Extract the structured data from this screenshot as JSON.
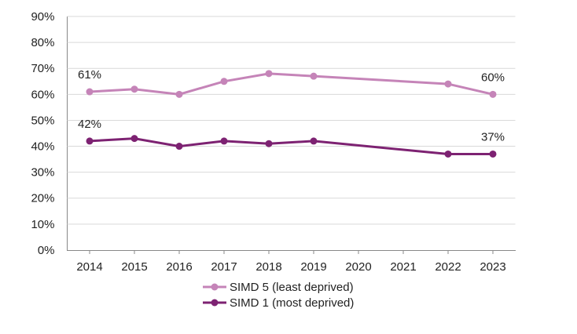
{
  "chart_data": {
    "type": "line",
    "x": [
      2014,
      2015,
      2016,
      2017,
      2018,
      2019,
      2022,
      2023
    ],
    "xlim": [
      2013.5,
      2023.5
    ],
    "xticks": [
      2014,
      2015,
      2016,
      2017,
      2018,
      2019,
      2020,
      2021,
      2022,
      2023
    ],
    "ylim": [
      0,
      90
    ],
    "yticks": [
      {
        "value": 0,
        "label": "0%"
      },
      {
        "value": 10,
        "label": "10%"
      },
      {
        "value": 20,
        "label": "20%"
      },
      {
        "value": 30,
        "label": "30%"
      },
      {
        "value": 40,
        "label": "40%"
      },
      {
        "value": 50,
        "label": "50%"
      },
      {
        "value": 60,
        "label": "60%"
      },
      {
        "value": 70,
        "label": "70%"
      },
      {
        "value": 80,
        "label": "80%"
      },
      {
        "value": 90,
        "label": "90%"
      }
    ],
    "grid": true,
    "legend": "bottom",
    "series": [
      {
        "name": "SIMD 5 (least deprived)",
        "color": "#c584b8",
        "values": [
          61,
          62,
          60,
          65,
          68,
          67,
          64,
          60
        ],
        "value_labels": [
          "61%",
          null,
          null,
          null,
          null,
          null,
          null,
          "60%"
        ]
      },
      {
        "name": "SIMD 1 (most deprived)",
        "color": "#7d2272",
        "values": [
          42,
          43,
          40,
          42,
          41,
          42,
          37,
          37
        ],
        "value_labels": [
          "42%",
          null,
          null,
          null,
          null,
          null,
          null,
          "37%"
        ]
      }
    ]
  }
}
